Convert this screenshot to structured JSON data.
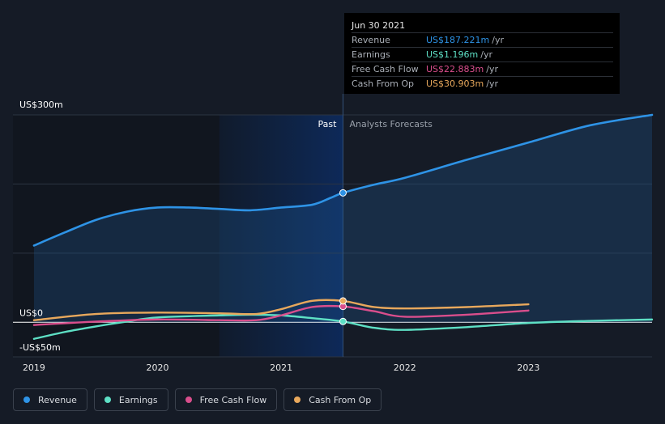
{
  "chart_data": {
    "type": "line",
    "title": "",
    "xlabel": "",
    "ylabel": "",
    "y_axis_labels": [
      "US$300m",
      "US$0",
      "-US$50m"
    ],
    "x_ticks": [
      {
        "x": 2019.0,
        "label": "2019"
      },
      {
        "x": 2020.0,
        "label": "2020"
      },
      {
        "x": 2021.0,
        "label": "2021"
      },
      {
        "x": 2022.0,
        "label": "2022"
      },
      {
        "x": 2023.0,
        "label": "2023"
      }
    ],
    "xlim": [
      2018.83,
      2024.0
    ],
    "ylim": [
      -50,
      300
    ],
    "gridlines_y": [
      300,
      200,
      100,
      0
    ],
    "past_label": "Past",
    "forecast_label": "Analysts Forecasts",
    "past_region_start": 2020.5,
    "divider_x": 2021.5,
    "highlight_start": 2018.83,
    "series": [
      {
        "name": "Revenue",
        "color": "#2e93e6",
        "fill": true,
        "points": [
          [
            2019.0,
            111
          ],
          [
            2019.25,
            130
          ],
          [
            2019.5,
            148
          ],
          [
            2019.75,
            160
          ],
          [
            2020.0,
            166
          ],
          [
            2020.25,
            166
          ],
          [
            2020.5,
            164
          ],
          [
            2020.75,
            162
          ],
          [
            2021.0,
            166
          ],
          [
            2021.25,
            170
          ],
          [
            2021.4,
            180
          ],
          [
            2021.5,
            187.221
          ],
          [
            2021.75,
            199
          ],
          [
            2022.0,
            209
          ],
          [
            2022.5,
            235
          ],
          [
            2023.0,
            260
          ],
          [
            2023.5,
            285
          ],
          [
            2024.0,
            300
          ]
        ]
      },
      {
        "name": "Earnings",
        "color": "#5ee0c5",
        "fill": false,
        "points": [
          [
            2019.0,
            -24
          ],
          [
            2019.25,
            -14
          ],
          [
            2019.5,
            -6
          ],
          [
            2019.75,
            1
          ],
          [
            2020.0,
            7
          ],
          [
            2020.5,
            10
          ],
          [
            2020.75,
            11
          ],
          [
            2021.0,
            10
          ],
          [
            2021.25,
            6
          ],
          [
            2021.5,
            1.196
          ],
          [
            2021.75,
            -8
          ],
          [
            2022.0,
            -11
          ],
          [
            2022.5,
            -7
          ],
          [
            2023.0,
            -1
          ],
          [
            2023.5,
            2
          ],
          [
            2024.0,
            4
          ]
        ]
      },
      {
        "name": "Free Cash Flow",
        "color": "#d94e8c",
        "fill": false,
        "points": [
          [
            2019.0,
            -4
          ],
          [
            2019.5,
            1
          ],
          [
            2020.0,
            4
          ],
          [
            2020.5,
            3
          ],
          [
            2020.8,
            3
          ],
          [
            2021.0,
            10
          ],
          [
            2021.25,
            22
          ],
          [
            2021.5,
            22.883
          ],
          [
            2021.75,
            16
          ],
          [
            2022.0,
            8
          ],
          [
            2022.5,
            11
          ],
          [
            2023.0,
            17
          ]
        ]
      },
      {
        "name": "Cash From Op",
        "color": "#e8a85c",
        "fill": false,
        "points": [
          [
            2019.0,
            3
          ],
          [
            2019.5,
            12
          ],
          [
            2020.0,
            14
          ],
          [
            2020.5,
            13
          ],
          [
            2020.8,
            12
          ],
          [
            2021.0,
            19
          ],
          [
            2021.25,
            31
          ],
          [
            2021.5,
            30.903
          ],
          [
            2021.75,
            22
          ],
          [
            2022.0,
            20
          ],
          [
            2022.5,
            22
          ],
          [
            2023.0,
            26
          ]
        ]
      }
    ],
    "markers_x": 2021.5
  },
  "tooltip": {
    "date": "Jun 30 2021",
    "rows": [
      {
        "label": "Revenue",
        "value": "US$187.221m",
        "unit": "/yr",
        "color": "#2e93e6"
      },
      {
        "label": "Earnings",
        "value": "US$1.196m",
        "unit": "/yr",
        "color": "#5ee0c5"
      },
      {
        "label": "Free Cash Flow",
        "value": "US$22.883m",
        "unit": "/yr",
        "color": "#d94e8c"
      },
      {
        "label": "Cash From Op",
        "value": "US$30.903m",
        "unit": "/yr",
        "color": "#e8a85c"
      }
    ]
  },
  "legend": [
    {
      "label": "Revenue",
      "color": "#2e93e6"
    },
    {
      "label": "Earnings",
      "color": "#5ee0c5"
    },
    {
      "label": "Free Cash Flow",
      "color": "#d94e8c"
    },
    {
      "label": "Cash From Op",
      "color": "#e8a85c"
    }
  ]
}
